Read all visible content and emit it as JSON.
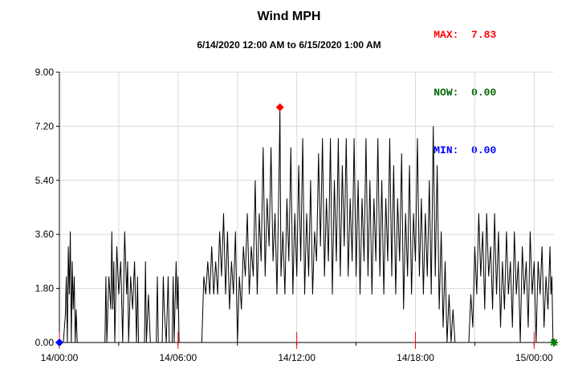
{
  "chart_data": {
    "type": "line",
    "title": "Wind MPH",
    "subtitle": "6/14/2020 12:00 AM to 6/15/2020 1:00 AM",
    "xlabel": "",
    "ylabel": "",
    "x_unit": "hours since 6/14/2020 00:00",
    "xlim": [
      0,
      25
    ],
    "ylim": [
      0,
      9
    ],
    "y_ticks": [
      "0.00",
      "1.80",
      "3.60",
      "5.40",
      "7.20",
      "9.00"
    ],
    "x_tick_labels": [
      "14/00:00",
      "14/06:00",
      "14/12:00",
      "14/18:00",
      "15/00:00"
    ],
    "grid": true,
    "series": [
      {
        "name": "Wind MPH",
        "color": "#000000",
        "points": [
          [
            0.0,
            0.0
          ],
          [
            0.2,
            0.0
          ],
          [
            0.3,
            0.9
          ],
          [
            0.35,
            2.2
          ],
          [
            0.4,
            0.0
          ],
          [
            0.45,
            3.2
          ],
          [
            0.5,
            1.6
          ],
          [
            0.55,
            3.7
          ],
          [
            0.6,
            0.0
          ],
          [
            0.65,
            2.7
          ],
          [
            0.7,
            1.1
          ],
          [
            0.75,
            2.2
          ],
          [
            0.8,
            0.0
          ],
          [
            0.85,
            1.1
          ],
          [
            0.9,
            0.0
          ],
          [
            2.3,
            0.0
          ],
          [
            2.35,
            2.2
          ],
          [
            2.4,
            0.0
          ],
          [
            2.5,
            2.2
          ],
          [
            2.6,
            1.1
          ],
          [
            2.65,
            3.7
          ],
          [
            2.7,
            1.1
          ],
          [
            2.75,
            2.7
          ],
          [
            2.8,
            0.0
          ],
          [
            2.9,
            3.2
          ],
          [
            3.0,
            1.6
          ],
          [
            3.1,
            2.7
          ],
          [
            3.2,
            0.0
          ],
          [
            3.3,
            3.7
          ],
          [
            3.4,
            1.6
          ],
          [
            3.45,
            2.7
          ],
          [
            3.5,
            0.0
          ],
          [
            3.6,
            2.2
          ],
          [
            3.7,
            1.1
          ],
          [
            3.8,
            2.7
          ],
          [
            3.9,
            0.0
          ],
          [
            3.95,
            2.2
          ],
          [
            4.0,
            0.0
          ],
          [
            4.3,
            0.0
          ],
          [
            4.35,
            2.7
          ],
          [
            4.4,
            0.0
          ],
          [
            4.5,
            1.6
          ],
          [
            4.6,
            0.0
          ],
          [
            4.9,
            0.0
          ],
          [
            4.95,
            2.2
          ],
          [
            5.0,
            0.0
          ],
          [
            5.2,
            0.0
          ],
          [
            5.25,
            2.2
          ],
          [
            5.3,
            1.1
          ],
          [
            5.4,
            0.0
          ],
          [
            5.5,
            2.2
          ],
          [
            5.55,
            0.0
          ],
          [
            5.7,
            0.0
          ],
          [
            5.75,
            2.2
          ],
          [
            5.8,
            0.0
          ],
          [
            5.9,
            2.7
          ],
          [
            5.95,
            1.1
          ],
          [
            6.0,
            2.2
          ],
          [
            6.05,
            0.0
          ],
          [
            6.1,
            0.0
          ],
          [
            7.2,
            0.0
          ],
          [
            7.3,
            2.2
          ],
          [
            7.4,
            1.6
          ],
          [
            7.5,
            2.7
          ],
          [
            7.6,
            1.6
          ],
          [
            7.7,
            3.2
          ],
          [
            7.8,
            1.6
          ],
          [
            7.9,
            2.7
          ],
          [
            8.0,
            1.6
          ],
          [
            8.1,
            3.7
          ],
          [
            8.2,
            2.2
          ],
          [
            8.3,
            4.3
          ],
          [
            8.4,
            1.6
          ],
          [
            8.5,
            3.7
          ],
          [
            8.6,
            1.1
          ],
          [
            8.7,
            2.7
          ],
          [
            8.8,
            1.6
          ],
          [
            8.9,
            3.7
          ],
          [
            9.0,
            0.0
          ],
          [
            9.1,
            2.2
          ],
          [
            9.2,
            1.1
          ],
          [
            9.3,
            3.2
          ],
          [
            9.4,
            2.2
          ],
          [
            9.5,
            4.3
          ],
          [
            9.6,
            1.6
          ],
          [
            9.7,
            3.2
          ],
          [
            9.8,
            2.2
          ],
          [
            9.9,
            5.4
          ],
          [
            10.0,
            1.6
          ],
          [
            10.1,
            4.3
          ],
          [
            10.2,
            2.7
          ],
          [
            10.3,
            6.5
          ],
          [
            10.4,
            2.2
          ],
          [
            10.5,
            4.8
          ],
          [
            10.6,
            3.2
          ],
          [
            10.7,
            6.5
          ],
          [
            10.8,
            2.7
          ],
          [
            10.9,
            4.3
          ],
          [
            11.0,
            1.6
          ],
          [
            11.1,
            5.4
          ],
          [
            11.15,
            7.83
          ],
          [
            11.2,
            2.2
          ],
          [
            11.3,
            3.7
          ],
          [
            11.4,
            1.6
          ],
          [
            11.5,
            4.8
          ],
          [
            11.6,
            2.7
          ],
          [
            11.7,
            6.5
          ],
          [
            11.8,
            1.6
          ],
          [
            11.9,
            4.3
          ],
          [
            12.0,
            2.2
          ],
          [
            12.1,
            5.9
          ],
          [
            12.2,
            2.7
          ],
          [
            12.3,
            6.8
          ],
          [
            12.4,
            1.6
          ],
          [
            12.5,
            4.3
          ],
          [
            12.6,
            2.2
          ],
          [
            12.7,
            5.4
          ],
          [
            12.8,
            1.6
          ],
          [
            12.9,
            3.7
          ],
          [
            13.0,
            2.7
          ],
          [
            13.1,
            6.3
          ],
          [
            13.2,
            3.2
          ],
          [
            13.3,
            6.8
          ],
          [
            13.4,
            2.2
          ],
          [
            13.5,
            4.8
          ],
          [
            13.6,
            2.7
          ],
          [
            13.7,
            6.8
          ],
          [
            13.8,
            1.6
          ],
          [
            13.9,
            5.4
          ],
          [
            14.0,
            2.7
          ],
          [
            14.1,
            6.8
          ],
          [
            14.2,
            2.2
          ],
          [
            14.3,
            5.9
          ],
          [
            14.4,
            3.2
          ],
          [
            14.5,
            6.8
          ],
          [
            14.6,
            2.2
          ],
          [
            14.7,
            4.8
          ],
          [
            14.8,
            2.7
          ],
          [
            14.9,
            6.8
          ],
          [
            15.0,
            2.2
          ],
          [
            15.1,
            5.4
          ],
          [
            15.2,
            1.6
          ],
          [
            15.3,
            4.8
          ],
          [
            15.4,
            2.7
          ],
          [
            15.5,
            6.8
          ],
          [
            15.6,
            2.2
          ],
          [
            15.7,
            5.4
          ],
          [
            15.8,
            1.6
          ],
          [
            15.9,
            4.8
          ],
          [
            16.0,
            2.7
          ],
          [
            16.1,
            6.8
          ],
          [
            16.2,
            2.2
          ],
          [
            16.3,
            5.4
          ],
          [
            16.4,
            1.6
          ],
          [
            16.5,
            4.8
          ],
          [
            16.6,
            2.7
          ],
          [
            16.7,
            6.8
          ],
          [
            16.8,
            2.2
          ],
          [
            16.9,
            5.9
          ],
          [
            17.0,
            1.6
          ],
          [
            17.1,
            4.8
          ],
          [
            17.2,
            2.7
          ],
          [
            17.3,
            6.3
          ],
          [
            17.4,
            1.1
          ],
          [
            17.5,
            4.3
          ],
          [
            17.6,
            2.2
          ],
          [
            17.7,
            5.9
          ],
          [
            17.8,
            1.6
          ],
          [
            17.9,
            4.3
          ],
          [
            18.0,
            2.7
          ],
          [
            18.1,
            6.8
          ],
          [
            18.2,
            2.2
          ],
          [
            18.3,
            4.8
          ],
          [
            18.4,
            1.6
          ],
          [
            18.5,
            4.3
          ],
          [
            18.6,
            2.2
          ],
          [
            18.7,
            5.4
          ],
          [
            18.8,
            1.6
          ],
          [
            18.9,
            7.2
          ],
          [
            19.0,
            2.2
          ],
          [
            19.1,
            5.9
          ],
          [
            19.2,
            1.1
          ],
          [
            19.3,
            3.7
          ],
          [
            19.4,
            0.5
          ],
          [
            19.5,
            2.7
          ],
          [
            19.6,
            0.0
          ],
          [
            19.7,
            1.6
          ],
          [
            19.8,
            0.0
          ],
          [
            19.9,
            1.1
          ],
          [
            20.0,
            0.0
          ],
          [
            20.7,
            0.0
          ],
          [
            20.8,
            1.6
          ],
          [
            20.9,
            0.5
          ],
          [
            21.0,
            3.2
          ],
          [
            21.1,
            1.6
          ],
          [
            21.2,
            4.3
          ],
          [
            21.3,
            2.2
          ],
          [
            21.4,
            3.7
          ],
          [
            21.5,
            1.1
          ],
          [
            21.6,
            4.3
          ],
          [
            21.7,
            2.2
          ],
          [
            21.8,
            3.2
          ],
          [
            21.9,
            1.1
          ],
          [
            22.0,
            4.3
          ],
          [
            22.1,
            1.6
          ],
          [
            22.2,
            3.7
          ],
          [
            22.3,
            0.5
          ],
          [
            22.4,
            2.7
          ],
          [
            22.5,
            1.1
          ],
          [
            22.6,
            3.7
          ],
          [
            22.7,
            1.6
          ],
          [
            22.8,
            2.7
          ],
          [
            22.9,
            0.5
          ],
          [
            23.0,
            3.7
          ],
          [
            23.1,
            1.6
          ],
          [
            23.2,
            2.7
          ],
          [
            23.3,
            0.0
          ],
          [
            23.4,
            3.2
          ],
          [
            23.5,
            1.6
          ],
          [
            23.6,
            2.7
          ],
          [
            23.7,
            0.5
          ],
          [
            23.8,
            3.7
          ],
          [
            23.9,
            1.6
          ],
          [
            24.0,
            2.7
          ],
          [
            24.1,
            0.0
          ],
          [
            24.2,
            2.7
          ],
          [
            24.3,
            1.6
          ],
          [
            24.4,
            3.2
          ],
          [
            24.5,
            0.5
          ],
          [
            24.6,
            2.2
          ],
          [
            24.7,
            1.1
          ],
          [
            24.8,
            3.2
          ],
          [
            24.85,
            1.6
          ],
          [
            24.9,
            2.2
          ],
          [
            24.95,
            0.0
          ],
          [
            25.0,
            0.0
          ]
        ]
      }
    ],
    "markers": [
      {
        "label": "MAX",
        "value": "7.83",
        "x": 11.15,
        "y": 7.83,
        "color": "#ff0000",
        "shape": "diamond"
      },
      {
        "label": "MIN",
        "value": "0.00",
        "x": 0.0,
        "y": 0.0,
        "color": "#0000ff",
        "shape": "diamond"
      },
      {
        "label": "NOW",
        "value": "0.00",
        "x": 25.0,
        "y": 0.0,
        "color": "#008000",
        "shape": "star"
      }
    ],
    "red_tick_hours": [
      0,
      6,
      12,
      18,
      24
    ]
  },
  "stats": {
    "max": {
      "label": "MAX:",
      "value": "7.83",
      "color": "#ff0000"
    },
    "now": {
      "label": "NOW:",
      "value": "0.00",
      "color": "#006400"
    },
    "min": {
      "label": "MIN:",
      "value": "0.00",
      "color": "#0000ff"
    }
  }
}
